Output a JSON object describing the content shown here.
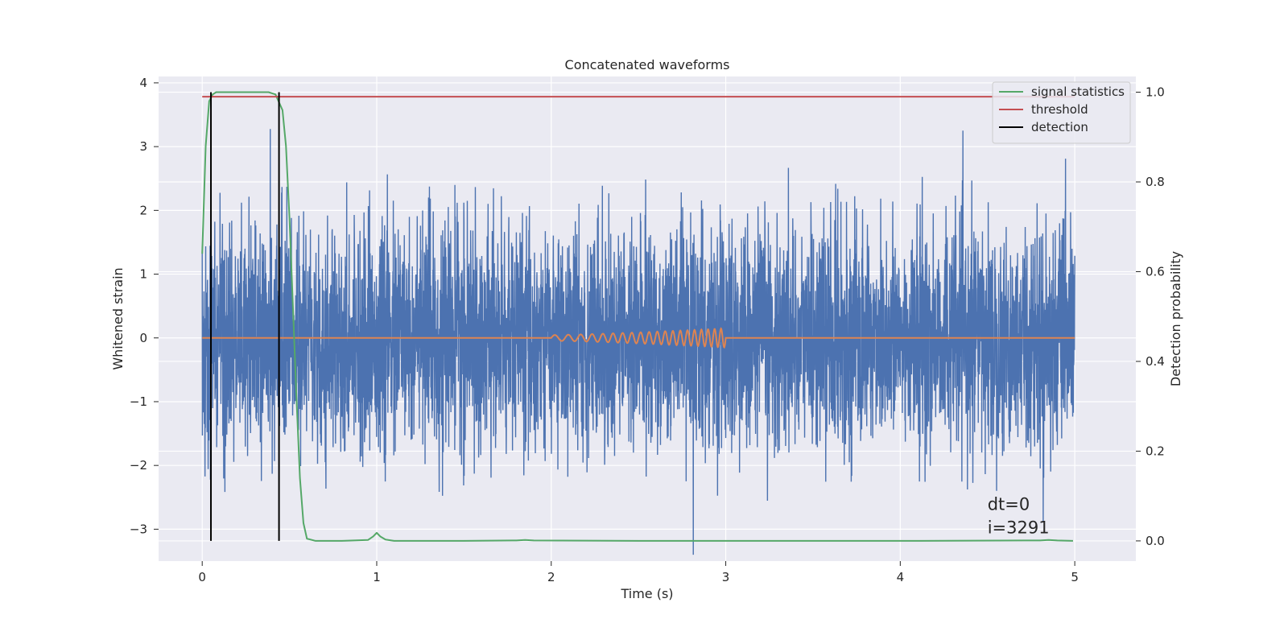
{
  "chart_data": {
    "type": "line",
    "title": "Concatenated waveforms",
    "xlabel": "Time (s)",
    "ylabel": "Whitened strain",
    "y2label": "Detection probability",
    "xlim": [
      -0.25,
      5.35
    ],
    "ylim": [
      -3.5,
      4.1
    ],
    "y2lim": [
      -0.045,
      1.035
    ],
    "xticks": [
      0,
      1,
      2,
      3,
      4,
      5
    ],
    "yticks": [
      -3,
      -2,
      -1,
      0,
      1,
      2,
      3,
      4
    ],
    "y2ticks": [
      0.0,
      0.2,
      0.4,
      0.6,
      0.8,
      1.0
    ],
    "xtick_labels": [
      "0",
      "1",
      "2",
      "3",
      "4",
      "5"
    ],
    "ytick_labels": [
      "−3",
      "−2",
      "−1",
      "0",
      "1",
      "2",
      "3",
      "4"
    ],
    "y2tick_labels": [
      "0.0",
      "0.2",
      "0.4",
      "0.6",
      "0.8",
      "1.0"
    ],
    "grid": true,
    "legend_position": "top-right",
    "series": [
      {
        "name": "",
        "axis": "left",
        "color": "#4c72b0",
        "kind": "noise",
        "x_range": [
          0,
          5
        ],
        "std": 0.85,
        "max": 3.75,
        "min": -3.4
      },
      {
        "name": "",
        "axis": "left",
        "color": "#dd8452",
        "kind": "chirp",
        "x_range": [
          0,
          5
        ],
        "chirp_start": 2.0,
        "chirp_end": 3.0,
        "peak_amplitude": 0.15
      },
      {
        "name": "signal statistics",
        "axis": "right",
        "color": "#55a868",
        "x": [
          0,
          0.02,
          0.04,
          0.06,
          0.08,
          0.12,
          0.2,
          0.3,
          0.38,
          0.42,
          0.46,
          0.48,
          0.5,
          0.52,
          0.54,
          0.56,
          0.58,
          0.6,
          0.65,
          0.8,
          0.95,
          0.98,
          1.0,
          1.02,
          1.05,
          1.1,
          1.5,
          1.8,
          1.85,
          1.9,
          2.5,
          3.0,
          4.0,
          4.8,
          4.85,
          4.9,
          4.99
        ],
        "y": [
          0.64,
          0.88,
          0.98,
          0.995,
          1.0,
          1.0,
          1.0,
          1.0,
          1.0,
          0.995,
          0.96,
          0.88,
          0.72,
          0.52,
          0.32,
          0.14,
          0.04,
          0.005,
          0.0,
          0.0,
          0.002,
          0.01,
          0.018,
          0.01,
          0.003,
          0.0,
          0.0,
          0.001,
          0.002,
          0.001,
          0.0,
          0.0,
          0.0,
          0.001,
          0.002,
          0.001,
          0.0
        ]
      },
      {
        "name": "threshold",
        "axis": "right",
        "color": "#c44e52",
        "x": [
          0,
          5
        ],
        "y": [
          0.99,
          0.99
        ]
      },
      {
        "name": "detection",
        "axis": "right",
        "color": "#000000",
        "vlines": [
          0.05,
          0.44
        ],
        "y_range": [
          0.0,
          1.0
        ]
      }
    ],
    "annotation": {
      "lines": [
        "dt=0",
        "i=3291"
      ],
      "x": 4.5,
      "y": -2.7
    }
  },
  "colors": {
    "plot_bg": "#eaeaf2",
    "grid": "#ffffff",
    "text": "#262626"
  }
}
